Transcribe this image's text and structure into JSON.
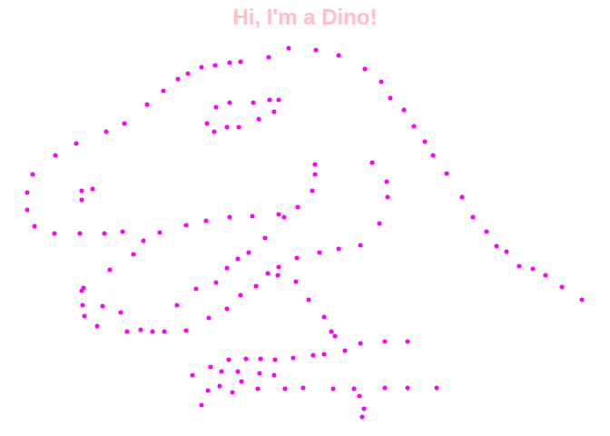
{
  "chart_data": {
    "type": "scatter",
    "title": "Hi, I'm a Dino!",
    "color": "#ff00ff",
    "marker": "circle",
    "tick_labels": false,
    "x": [
      36,
      30,
      30,
      38,
      60,
      88,
      115,
      135,
      158,
      176,
      205,
      227,
      253,
      278,
      307,
      313,
      328,
      344,
      347,
      347,
      61,
      84,
      117,
      137,
      162,
      180,
      196,
      207,
      222,
      237,
      253,
      265,
      296,
      318,
      348,
      373,
      402,
      420,
      430,
      445,
      456,
      468,
      477,
      492,
      509,
      521,
      536,
      547,
      558,
      572,
      587,
      601,
      619,
      641,
      228,
      236,
      250,
      263,
      285,
      302,
      307,
      297,
      279,
      253,
      238,
      90,
      102,
      90,
      410,
      426,
      427,
      418,
      397,
      373,
      352,
      327,
      121,
      147,
      92,
      90,
      91,
      93,
      107,
      113,
      133,
      140,
      155,
      168,
      181,
      195,
      205,
      216,
      230,
      238,
      250,
      265,
      282,
      295,
      307,
      306,
      326,
      340,
      357,
      365,
      369,
      380,
      397,
      424,
      449,
      250,
      262,
      274,
      292,
      212,
      222,
      232,
      229,
      244,
      242,
      252,
      256,
      262,
      266,
      271,
      287,
      286,
      284,
      303,
      302,
      314,
      323,
      334,
      345,
      357,
      367,
      390,
      396,
      401,
      399,
      424,
      449,
      481
    ],
    "y": [
      288,
      268,
      249,
      231,
      223,
      223,
      223,
      225,
      215,
      224,
      232,
      237,
      241,
      242,
      244,
      241,
      252,
      270,
      288,
      299,
      309,
      322,
      335,
      344,
      365,
      380,
      393,
      399,
      406,
      408,
      411,
      412,
      417,
      427,
      425,
      419,
      404,
      390,
      372,
      359,
      341,
      324,
      309,
      289,
      263,
      241,
      225,
      209,
      203,
      187,
      184,
      177,
      164,
      150,
      344,
      335,
      340,
      340,
      349,
      357,
      370,
      370,
      367,
      367,
      362,
      270,
      272,
      260,
      301,
      280,
      263,
      234,
      210,
      206,
      202,
      196,
      183,
      200,
      163,
      160,
      144,
      132,
      121,
      143,
      136,
      115,
      117,
      115,
      115,
      144,
      116,
      162,
      130,
      169,
      140,
      155,
      165,
      179,
      186,
      177,
      170,
      150,
      131,
      115,
      110,
      94,
      102,
      104,
      104,
      185,
      195,
      202,
      218,
      67,
      34,
      76,
      50,
      71,
      55,
      84,
      48,
      71,
      60,
      85,
      85,
      69,
      52,
      84,
      67,
      52,
      86,
      53,
      89,
      90,
      52,
      52,
      44,
      30,
      21,
      53,
      53,
      53
    ]
  }
}
